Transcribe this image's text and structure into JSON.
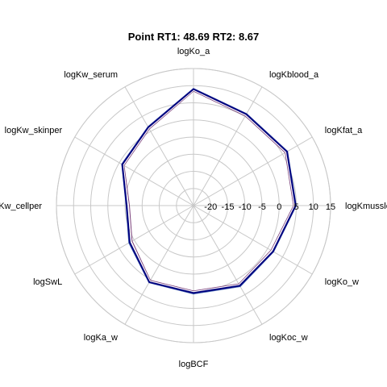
{
  "chart_data": {
    "type": "radar",
    "title": "Point  RT1:  48.69   RT2:  8.67",
    "r_ticks": [
      -20,
      -15,
      -10,
      -5,
      0,
      5,
      10,
      15
    ],
    "r_tick_labels": [
      "-20",
      "-15",
      "-10",
      "-5",
      "0",
      "5",
      "10",
      "15"
    ],
    "rlim": [
      -25,
      15
    ],
    "grid": true,
    "axes": [
      "logKo_a",
      "logKblood_a",
      "logKfat_a",
      "logKmussle_a",
      "logKo_w",
      "logKoc_w",
      "logBCF",
      "logKa_w",
      "logSwL",
      "logKw_cellper",
      "logKw_skinper",
      "logKw_serum"
    ],
    "series": [
      {
        "color": "#00007f",
        "values": [
          9.0,
          5.8,
          6.5,
          4.8,
          1.8,
          2.0,
          0.5,
          0.8,
          -3.5,
          -5.5,
          -1.0,
          1.4
        ]
      },
      {
        "color": "#ffffff",
        "values": [
          8.6,
          5.4,
          6.1,
          4.4,
          1.3,
          1.6,
          0.1,
          0.4,
          -4.0,
          -6.0,
          -1.4,
          1.0
        ]
      },
      {
        "color": "#4b6fb6",
        "values": [
          9.2,
          6.0,
          6.7,
          5.0,
          2.0,
          2.3,
          0.8,
          1.0,
          -3.2,
          -5.3,
          -0.8,
          1.6
        ]
      },
      {
        "color": "#7a3f7a",
        "values": [
          8.4,
          5.2,
          5.9,
          4.2,
          1.1,
          1.4,
          -0.1,
          0.2,
          -4.3,
          -6.3,
          -1.6,
          0.8
        ]
      }
    ]
  }
}
